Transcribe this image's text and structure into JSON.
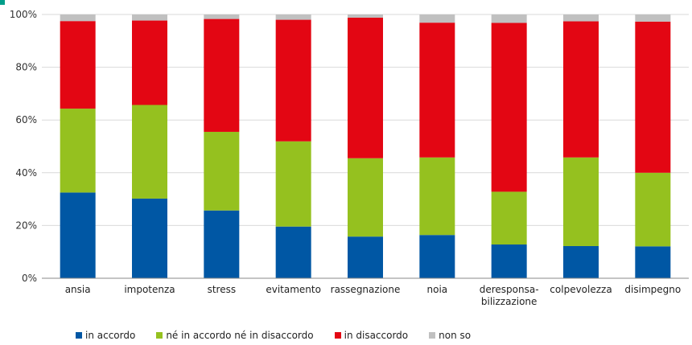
{
  "chart_data": {
    "type": "bar",
    "stacked": true,
    "categories": [
      "ansia",
      "impotenza",
      "stress",
      "evitamento",
      "rassegnazione",
      "noia",
      "deresponsa-\nbilizzazione",
      "colpevolezza",
      "disimpegno"
    ],
    "series": [
      {
        "name": "in accordo",
        "color": "#0057a4",
        "values": [
          32.5,
          30.2,
          25.7,
          19.6,
          15.8,
          16.4,
          12.8,
          12.2,
          12.1
        ]
      },
      {
        "name": "né in accordo né in disaccordo",
        "color": "#95c11f",
        "values": [
          31.8,
          35.5,
          29.8,
          32.3,
          29.7,
          29.4,
          20.0,
          33.6,
          27.9
        ]
      },
      {
        "name": "in disaccordo",
        "color": "#e30613",
        "values": [
          33.2,
          32.0,
          42.8,
          46.1,
          53.3,
          51.1,
          64.0,
          51.6,
          57.3
        ]
      },
      {
        "name": "non so",
        "color": "#c0c0c0",
        "values": [
          2.5,
          2.3,
          1.7,
          2.0,
          1.2,
          3.1,
          3.2,
          2.6,
          2.7
        ]
      }
    ],
    "ylim": [
      0,
      100
    ],
    "yticks": [
      "0%",
      "20%",
      "40%",
      "60%",
      "80%",
      "100%"
    ],
    "grid": true,
    "legend_position": "bottom-left"
  }
}
